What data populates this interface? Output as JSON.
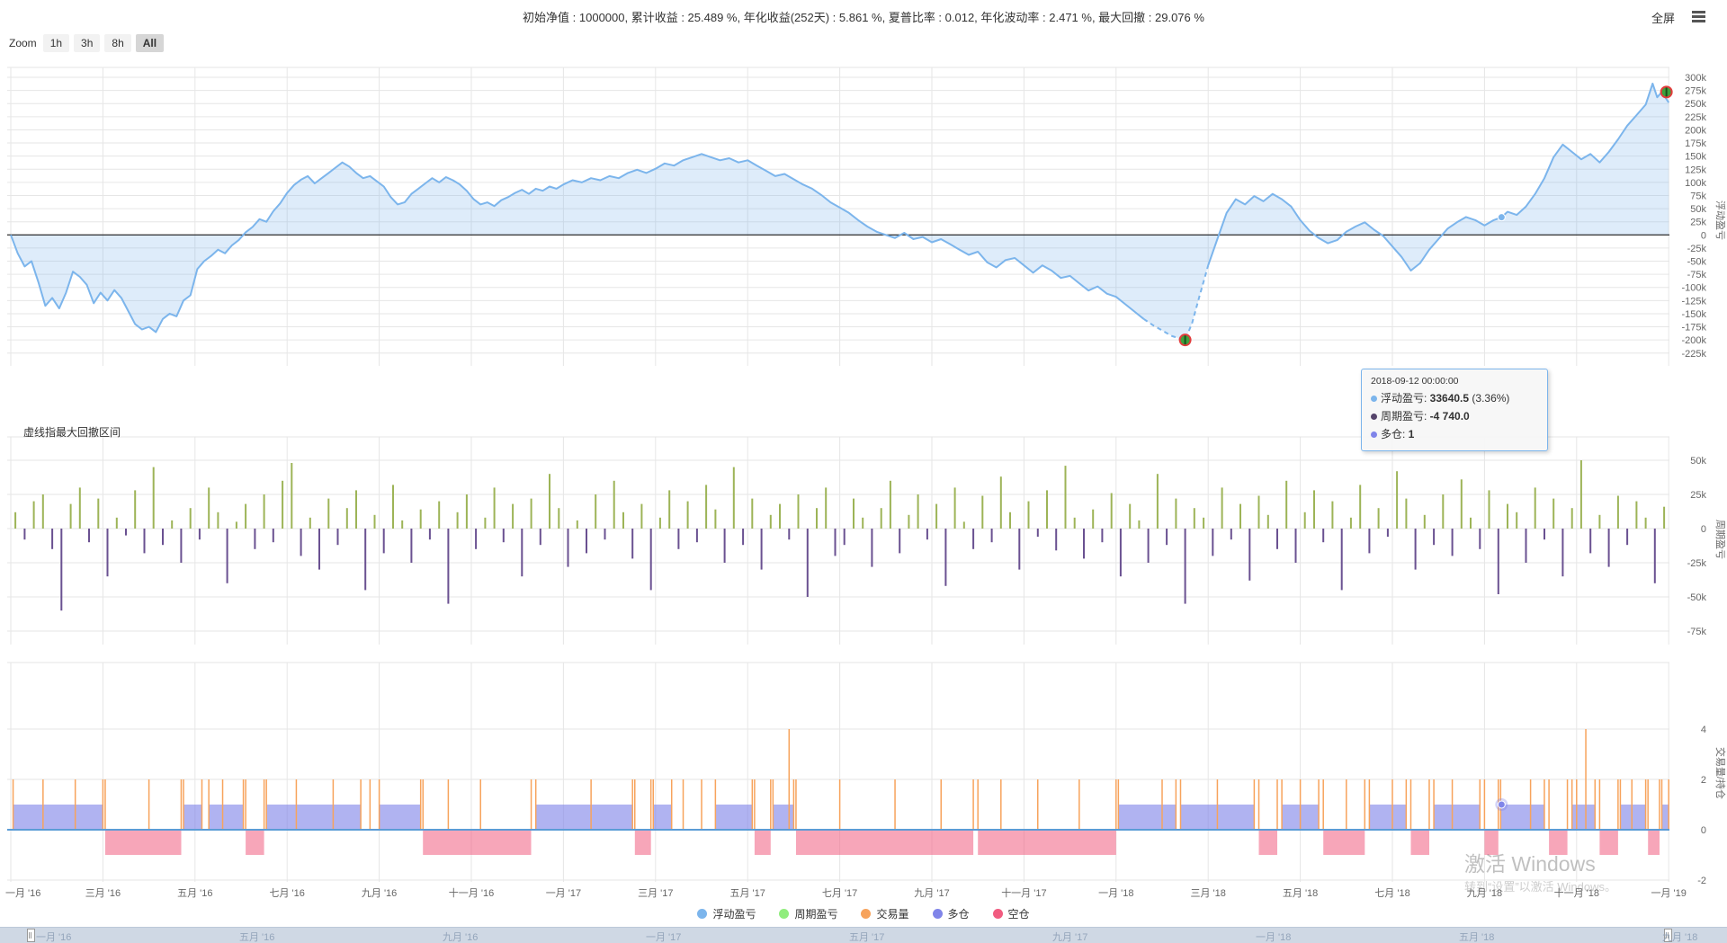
{
  "header": {
    "title": "初始净值 : 1000000, 累计收益 : 25.489 %, 年化收益(252天) : 5.861 %, 夏普比率 : 0.012, 年化波动率 : 2.471 %, 最大回撤 : 29.076 %",
    "fullscreen_label": "全屏"
  },
  "range_selector": {
    "label": "Zoom",
    "buttons": [
      "1h",
      "3h",
      "8h",
      "All"
    ],
    "selected": "All"
  },
  "annotation_note": "虚线指最大回撤区间",
  "tooltip": {
    "date": "2018-09-12 00:00:00",
    "rows": [
      {
        "label": "浮动盈亏",
        "value": "33640.5",
        "suffix": " (3.36%)",
        "color": "#7cb5ec"
      },
      {
        "label": "周期盈亏",
        "value": "-4 740.0",
        "suffix": "",
        "color": "#55446b"
      },
      {
        "label": "多仓",
        "value": "1",
        "suffix": "",
        "color": "#8085e9"
      }
    ]
  },
  "legend": [
    {
      "label": "浮动盈亏",
      "color": "#7cb5ec"
    },
    {
      "label": "周期盈亏",
      "color": "#90ed7d"
    },
    {
      "label": "交易量",
      "color": "#f7a35c"
    },
    {
      "label": "多仓",
      "color": "#8085e9"
    },
    {
      "label": "空仓",
      "color": "#f15c80"
    }
  ],
  "watermark": {
    "line1": "激活 Windows",
    "line2": "转到“设置”以激活 Windows。"
  },
  "navigator": {
    "labels": [
      "一月 '16",
      "五月 '16",
      "九月 '16",
      "一月 '17",
      "五月 '17",
      "九月 '17",
      "一月 '18",
      "五月 '18",
      "九月 '18"
    ]
  },
  "xaxis": {
    "labels": [
      "一月 '16",
      "三月 '16",
      "五月 '16",
      "七月 '16",
      "九月 '16",
      "十一月 '16",
      "一月 '17",
      "三月 '17",
      "五月 '17",
      "七月 '17",
      "九月 '17",
      "十一月 '17",
      "一月 '18",
      "三月 '18",
      "五月 '18",
      "七月 '18",
      "九月 '18",
      "十一月 '18",
      "一月 '19"
    ]
  },
  "chart_data": [
    {
      "type": "area",
      "name": "浮动盈亏",
      "ylabel": "浮动盈亏",
      "color": "#7cb5ec",
      "fill": "rgba(124,181,236,0.25)",
      "unit": "value in thousands (k), x in months since 2016-01",
      "ylim": [
        -225,
        300
      ],
      "yticks": [
        300,
        275,
        250,
        225,
        200,
        175,
        150,
        125,
        100,
        75,
        50,
        25,
        0,
        -25,
        -50,
        -75,
        -100,
        -125,
        -150,
        -175,
        -200,
        -225
      ],
      "zero_plotline": true,
      "dashed_interval": [
        24.6,
        26.0
      ],
      "markers": [
        [
          25.5,
          -200
        ],
        [
          35.95,
          272
        ]
      ],
      "hover_point": [
        32.37,
        33.6
      ],
      "points": [
        [
          0,
          0
        ],
        [
          0.15,
          -35
        ],
        [
          0.3,
          -60
        ],
        [
          0.45,
          -50
        ],
        [
          0.6,
          -90
        ],
        [
          0.75,
          -135
        ],
        [
          0.9,
          -120
        ],
        [
          1.05,
          -140
        ],
        [
          1.2,
          -110
        ],
        [
          1.35,
          -70
        ],
        [
          1.5,
          -80
        ],
        [
          1.65,
          -95
        ],
        [
          1.8,
          -130
        ],
        [
          1.95,
          -110
        ],
        [
          2.1,
          -125
        ],
        [
          2.25,
          -105
        ],
        [
          2.4,
          -120
        ],
        [
          2.55,
          -145
        ],
        [
          2.7,
          -170
        ],
        [
          2.85,
          -180
        ],
        [
          3,
          -175
        ],
        [
          3.15,
          -185
        ],
        [
          3.3,
          -160
        ],
        [
          3.45,
          -150
        ],
        [
          3.6,
          -155
        ],
        [
          3.75,
          -125
        ],
        [
          3.9,
          -115
        ],
        [
          4.05,
          -65
        ],
        [
          4.2,
          -50
        ],
        [
          4.35,
          -40
        ],
        [
          4.5,
          -28
        ],
        [
          4.65,
          -35
        ],
        [
          4.8,
          -20
        ],
        [
          4.95,
          -10
        ],
        [
          5.1,
          5
        ],
        [
          5.25,
          15
        ],
        [
          5.4,
          30
        ],
        [
          5.55,
          25
        ],
        [
          5.7,
          45
        ],
        [
          5.85,
          60
        ],
        [
          6,
          80
        ],
        [
          6.15,
          95
        ],
        [
          6.3,
          105
        ],
        [
          6.45,
          112
        ],
        [
          6.6,
          98
        ],
        [
          6.75,
          108
        ],
        [
          6.9,
          118
        ],
        [
          7.05,
          128
        ],
        [
          7.2,
          138
        ],
        [
          7.35,
          130
        ],
        [
          7.5,
          118
        ],
        [
          7.65,
          108
        ],
        [
          7.8,
          112
        ],
        [
          7.95,
          102
        ],
        [
          8.1,
          92
        ],
        [
          8.25,
          72
        ],
        [
          8.4,
          58
        ],
        [
          8.55,
          62
        ],
        [
          8.7,
          78
        ],
        [
          8.85,
          88
        ],
        [
          9,
          98
        ],
        [
          9.15,
          108
        ],
        [
          9.3,
          100
        ],
        [
          9.45,
          110
        ],
        [
          9.6,
          104
        ],
        [
          9.75,
          96
        ],
        [
          9.9,
          84
        ],
        [
          10.05,
          68
        ],
        [
          10.2,
          58
        ],
        [
          10.35,
          62
        ],
        [
          10.5,
          55
        ],
        [
          10.65,
          66
        ],
        [
          10.8,
          72
        ],
        [
          10.95,
          80
        ],
        [
          11.1,
          86
        ],
        [
          11.25,
          78
        ],
        [
          11.4,
          88
        ],
        [
          11.55,
          84
        ],
        [
          11.7,
          92
        ],
        [
          11.85,
          88
        ],
        [
          12,
          96
        ],
        [
          12.2,
          104
        ],
        [
          12.4,
          100
        ],
        [
          12.6,
          108
        ],
        [
          12.8,
          104
        ],
        [
          13,
          112
        ],
        [
          13.2,
          108
        ],
        [
          13.4,
          118
        ],
        [
          13.6,
          124
        ],
        [
          13.8,
          118
        ],
        [
          14,
          126
        ],
        [
          14.2,
          136
        ],
        [
          14.4,
          132
        ],
        [
          14.6,
          142
        ],
        [
          14.8,
          148
        ],
        [
          15,
          154
        ],
        [
          15.2,
          148
        ],
        [
          15.4,
          142
        ],
        [
          15.6,
          146
        ],
        [
          15.8,
          138
        ],
        [
          16,
          142
        ],
        [
          16.2,
          132
        ],
        [
          16.4,
          122
        ],
        [
          16.6,
          112
        ],
        [
          16.8,
          116
        ],
        [
          17,
          106
        ],
        [
          17.2,
          96
        ],
        [
          17.4,
          88
        ],
        [
          17.6,
          76
        ],
        [
          17.8,
          62
        ],
        [
          18,
          52
        ],
        [
          18.2,
          42
        ],
        [
          18.4,
          28
        ],
        [
          18.6,
          16
        ],
        [
          18.8,
          6
        ],
        [
          19,
          0
        ],
        [
          19.2,
          -6
        ],
        [
          19.4,
          4
        ],
        [
          19.6,
          -8
        ],
        [
          19.8,
          -4
        ],
        [
          20,
          -14
        ],
        [
          20.2,
          -8
        ],
        [
          20.4,
          -18
        ],
        [
          20.6,
          -28
        ],
        [
          20.8,
          -38
        ],
        [
          21,
          -32
        ],
        [
          21.2,
          -52
        ],
        [
          21.4,
          -62
        ],
        [
          21.6,
          -48
        ],
        [
          21.8,
          -44
        ],
        [
          22,
          -58
        ],
        [
          22.2,
          -72
        ],
        [
          22.4,
          -58
        ],
        [
          22.6,
          -68
        ],
        [
          22.8,
          -82
        ],
        [
          23,
          -78
        ],
        [
          23.2,
          -92
        ],
        [
          23.4,
          -106
        ],
        [
          23.6,
          -98
        ],
        [
          23.8,
          -112
        ],
        [
          24,
          -118
        ],
        [
          24.2,
          -132
        ],
        [
          24.4,
          -146
        ],
        [
          24.6,
          -160
        ],
        [
          24.8,
          -172
        ],
        [
          25,
          -182
        ],
        [
          25.2,
          -192
        ],
        [
          25.4,
          -198
        ],
        [
          25.5,
          -200
        ],
        [
          25.65,
          -168
        ],
        [
          25.8,
          -120
        ],
        [
          26,
          -58
        ],
        [
          26.2,
          -8
        ],
        [
          26.4,
          42
        ],
        [
          26.6,
          68
        ],
        [
          26.8,
          58
        ],
        [
          27,
          74
        ],
        [
          27.2,
          64
        ],
        [
          27.4,
          78
        ],
        [
          27.6,
          68
        ],
        [
          27.8,
          54
        ],
        [
          28,
          28
        ],
        [
          28.2,
          8
        ],
        [
          28.4,
          -6
        ],
        [
          28.6,
          -16
        ],
        [
          28.8,
          -10
        ],
        [
          29,
          6
        ],
        [
          29.2,
          16
        ],
        [
          29.4,
          24
        ],
        [
          29.6,
          10
        ],
        [
          29.8,
          -2
        ],
        [
          30,
          -22
        ],
        [
          30.2,
          -42
        ],
        [
          30.4,
          -68
        ],
        [
          30.6,
          -54
        ],
        [
          30.8,
          -28
        ],
        [
          31,
          -8
        ],
        [
          31.2,
          12
        ],
        [
          31.4,
          24
        ],
        [
          31.6,
          34
        ],
        [
          31.8,
          28
        ],
        [
          32,
          18
        ],
        [
          32.2,
          28
        ],
        [
          32.37,
          33.6
        ],
        [
          32.5,
          44
        ],
        [
          32.7,
          38
        ],
        [
          32.9,
          54
        ],
        [
          33.1,
          78
        ],
        [
          33.3,
          108
        ],
        [
          33.5,
          148
        ],
        [
          33.7,
          172
        ],
        [
          33.9,
          158
        ],
        [
          34.1,
          144
        ],
        [
          34.3,
          154
        ],
        [
          34.5,
          138
        ],
        [
          34.7,
          158
        ],
        [
          34.9,
          182
        ],
        [
          35.1,
          208
        ],
        [
          35.3,
          228
        ],
        [
          35.5,
          248
        ],
        [
          35.65,
          288
        ],
        [
          35.75,
          262
        ],
        [
          35.85,
          272
        ],
        [
          36,
          252
        ]
      ]
    },
    {
      "type": "bar",
      "name": "周期盈亏",
      "ylabel": "周期盈亏",
      "positive_color": "#9db457",
      "negative_color": "#6a5191",
      "unit": "value in thousands (k)",
      "ylim": [
        -75,
        50
      ],
      "yticks": [
        50,
        25,
        0,
        -25,
        -50,
        -75
      ],
      "x_start": 0.1,
      "x_step": 0.2,
      "values": [
        12,
        -8,
        20,
        25,
        -15,
        -60,
        18,
        30,
        -10,
        22,
        -35,
        8,
        -5,
        28,
        -18,
        45,
        -12,
        6,
        -25,
        15,
        -8,
        30,
        12,
        -40,
        5,
        18,
        -15,
        25,
        -10,
        35,
        48,
        -20,
        8,
        -30,
        22,
        -12,
        15,
        28,
        -45,
        10,
        -18,
        32,
        6,
        -25,
        14,
        -8,
        20,
        -55,
        12,
        25,
        -15,
        8,
        30,
        -10,
        18,
        -35,
        22,
        -12,
        40,
        15,
        -28,
        6,
        -18,
        25,
        -8,
        35,
        12,
        -22,
        18,
        -45,
        8,
        28,
        -15,
        20,
        -10,
        32,
        14,
        -25,
        45,
        -12,
        22,
        -30,
        10,
        18,
        -8,
        25,
        -50,
        15,
        30,
        -20,
        -12,
        22,
        8,
        -28,
        15,
        35,
        -18,
        10,
        25,
        -8,
        18,
        -42,
        30,
        5,
        -15,
        24,
        -10,
        38,
        12,
        -30,
        20,
        -6,
        28,
        -16,
        46,
        8,
        -22,
        14,
        -10,
        26,
        -35,
        18,
        6,
        -25,
        40,
        -12,
        22,
        -55,
        15,
        8,
        -20,
        30,
        -8,
        18,
        -38,
        24,
        10,
        -15,
        35,
        -25,
        12,
        28,
        -10,
        20,
        -45,
        8,
        32,
        -18,
        15,
        -6,
        42,
        22,
        -30,
        10,
        -12,
        25,
        -20,
        36,
        8,
        -15,
        28,
        -48,
        18,
        12,
        -25,
        30,
        -8,
        22,
        -35,
        15,
        50,
        -18,
        10,
        -28,
        24,
        -12,
        20,
        8,
        -40,
        16
      ]
    },
    {
      "type": "position-bands-volume",
      "name": "交易量/持仓",
      "ylabel": "交易量/持仓",
      "long_label": "多仓",
      "short_label": "空仓",
      "volume_label": "交易量",
      "long_color": "#8085e9",
      "short_color": "#f15c80",
      "volume_color": "#f7a35c",
      "ylim": [
        -2,
        4
      ],
      "yticks": [
        4,
        2,
        0,
        -2
      ],
      "position_size": 1,
      "volume_height": 2,
      "hover_point": [
        32.37,
        1
      ],
      "segments": [
        [
          "L",
          0.05,
          2.0
        ],
        [
          "S",
          2.05,
          3.7
        ],
        [
          "L",
          3.75,
          4.15
        ],
        [
          "L",
          4.3,
          5.05
        ],
        [
          "S",
          5.1,
          5.5
        ],
        [
          "L",
          5.55,
          7.6
        ],
        [
          "L",
          8.0,
          8.9
        ],
        [
          "S",
          8.95,
          11.3
        ],
        [
          "L",
          11.4,
          13.5
        ],
        [
          "S",
          13.55,
          13.9
        ],
        [
          "L",
          13.95,
          14.35
        ],
        [
          "L",
          15.3,
          16.1
        ],
        [
          "S",
          16.15,
          16.5
        ],
        [
          "L",
          16.55,
          17.0
        ],
        [
          "S",
          17.05,
          20.9
        ],
        [
          "S",
          21.0,
          24.0
        ],
        [
          "L",
          24.05,
          25.3
        ],
        [
          "L",
          25.4,
          27.0
        ],
        [
          "S",
          27.1,
          27.5
        ],
        [
          "L",
          27.6,
          28.4
        ],
        [
          "S",
          28.5,
          29.4
        ],
        [
          "L",
          29.5,
          30.3
        ],
        [
          "S",
          30.4,
          30.8
        ],
        [
          "L",
          30.9,
          31.9
        ],
        [
          "S",
          32.0,
          32.3
        ],
        [
          "L",
          32.35,
          33.3
        ],
        [
          "S",
          33.4,
          33.8
        ],
        [
          "L",
          33.9,
          34.4
        ],
        [
          "S",
          34.5,
          34.9
        ],
        [
          "L",
          34.95,
          35.5
        ],
        [
          "S",
          35.55,
          35.8
        ],
        [
          "L",
          35.85,
          36.0
        ]
      ],
      "extra_trades": [
        0.7,
        1.4,
        3.0,
        4.6,
        6.2,
        7.0,
        7.8,
        9.5,
        10.2,
        12.6,
        14.6,
        15.0,
        18.0,
        19.2,
        20.2,
        21.5,
        22.3,
        23.2,
        25.0,
        26.2,
        28.0,
        29.0,
        30.0,
        31.3,
        33.0,
        34.0,
        35.2
      ],
      "tall_trades": [
        [
          16.9,
          4
        ],
        [
          34.2,
          4
        ]
      ]
    }
  ]
}
